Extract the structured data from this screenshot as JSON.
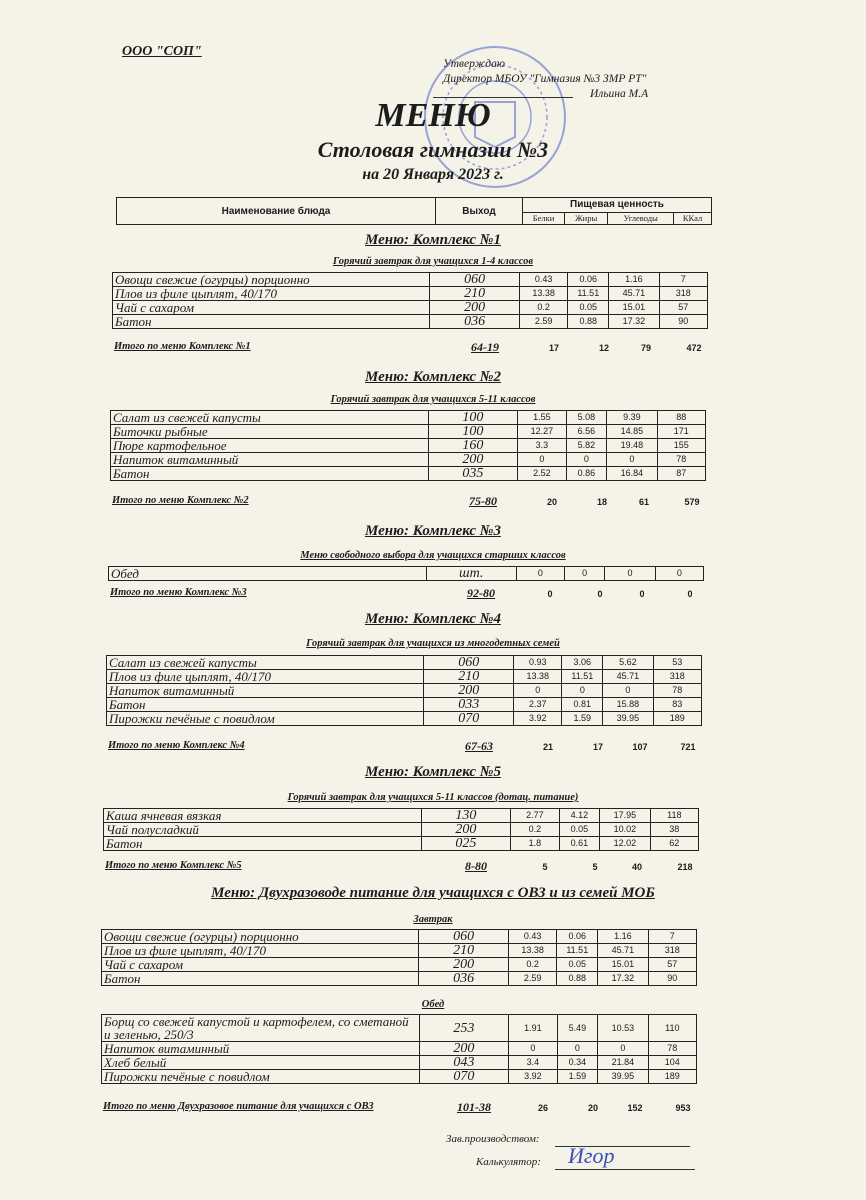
{
  "org": "ООО \"СОП\"",
  "approval": {
    "line1": "Утверждаю",
    "line2": "Директор МБОУ \"Гимназия №3 ЗМР РТ\"",
    "name": "Ильина М.А"
  },
  "title": "МЕНЮ",
  "subtitle": "Столовая гимназии №3",
  "date": "на 20 Января 2023 г.",
  "header": {
    "dish": "Наименование блюда",
    "output": "Выход",
    "nutrition": "Пищевая ценность",
    "protein": "Белки",
    "fat": "Жиры",
    "carbs": "Углеводы",
    "kcal": "ККал"
  },
  "sections": [
    {
      "title": "Меню: Комплекс №1",
      "groups": [
        {
          "subtitle": "Горячий завтрак для учащихся 1-4 классов",
          "rows": [
            [
              "Овощи свежие (огурцы) порционно",
              "060",
              "0.43",
              "0.06",
              "1.16",
              "7"
            ],
            [
              "Плов из филе цыплят, 40/170",
              "210",
              "13.38",
              "11.51",
              "45.71",
              "318"
            ],
            [
              "Чай с сахаром",
              "200",
              "0.2",
              "0.05",
              "15.01",
              "57"
            ],
            [
              "Батон",
              "036",
              "2.59",
              "0.88",
              "17.32",
              "90"
            ]
          ]
        }
      ],
      "total": [
        "Итого по меню Комплекс №1",
        "64-19",
        "17",
        "12",
        "79",
        "472"
      ]
    },
    {
      "title": "Меню: Комплекс №2",
      "groups": [
        {
          "subtitle": "Горячий завтрак для учащихся 5-11 классов",
          "rows": [
            [
              "Салат из свежей капусты",
              "100",
              "1.55",
              "5.08",
              "9.39",
              "88"
            ],
            [
              "Биточки рыбные",
              "100",
              "12.27",
              "6.56",
              "14.85",
              "171"
            ],
            [
              "Пюре картофельное",
              "160",
              "3.3",
              "5.82",
              "19.48",
              "155"
            ],
            [
              "Напиток витаминный",
              "200",
              "0",
              "0",
              "0",
              "78"
            ],
            [
              "Батон",
              "035",
              "2.52",
              "0.86",
              "16.84",
              "87"
            ]
          ]
        }
      ],
      "total": [
        "Итого по меню Комплекс №2",
        "75-80",
        "20",
        "18",
        "61",
        "579"
      ]
    },
    {
      "title": "Меню: Комплекс №3",
      "groups": [
        {
          "subtitle": "Меню свободного выбора для учащихся старших классов",
          "rows": [
            [
              "Обед",
              "шт.",
              "0",
              "0",
              "0",
              "0"
            ]
          ]
        }
      ],
      "total": [
        "Итого по меню Комплекс №3",
        "92-80",
        "0",
        "0",
        "0",
        "0"
      ]
    },
    {
      "title": "Меню: Комплекс №4",
      "groups": [
        {
          "subtitle": "Горячий завтрак для учащихся из многодетных семей",
          "rows": [
            [
              "Салат из свежей капусты",
              "060",
              "0.93",
              "3.06",
              "5.62",
              "53"
            ],
            [
              "Плов из филе цыплят, 40/170",
              "210",
              "13.38",
              "11.51",
              "45.71",
              "318"
            ],
            [
              "Напиток витаминный",
              "200",
              "0",
              "0",
              "0",
              "78"
            ],
            [
              "Батон",
              "033",
              "2.37",
              "0.81",
              "15.88",
              "83"
            ],
            [
              "Пирожки печёные с повидлом",
              "070",
              "3.92",
              "1.59",
              "39.95",
              "189"
            ]
          ]
        }
      ],
      "total": [
        "Итого по меню Комплекс №4",
        "67-63",
        "21",
        "17",
        "107",
        "721"
      ]
    },
    {
      "title": "Меню: Комплекс №5",
      "groups": [
        {
          "subtitle": "Горячий завтрак для учащихся 5-11 классов (дотац. питание)",
          "rows": [
            [
              "Каша ячневая вязкая",
              "130",
              "2.77",
              "4.12",
              "17.95",
              "118"
            ],
            [
              "Чай полусладкий",
              "200",
              "0.2",
              "0.05",
              "10.02",
              "38"
            ],
            [
              "Батон",
              "025",
              "1.8",
              "0.61",
              "12.02",
              "62"
            ]
          ]
        }
      ],
      "total": [
        "Итого по меню Комплекс №5",
        "8-80",
        "5",
        "5",
        "40",
        "218"
      ]
    },
    {
      "title": "Меню: Двухразоводе питание для учащихся с ОВЗ и из семей МОБ",
      "groups": [
        {
          "subtitle": "Завтрак",
          "rows": [
            [
              "Овощи свежие (огурцы) порционно",
              "060",
              "0.43",
              "0.06",
              "1.16",
              "7"
            ],
            [
              "Плов из филе цыплят, 40/170",
              "210",
              "13.38",
              "11.51",
              "45.71",
              "318"
            ],
            [
              "Чай с сахаром",
              "200",
              "0.2",
              "0.05",
              "15.01",
              "57"
            ],
            [
              "Батон",
              "036",
              "2.59",
              "0.88",
              "17.32",
              "90"
            ]
          ]
        },
        {
          "subtitle": "Обед",
          "rows": [
            [
              "Борщ со свежей капустой и картофелем, со сметаной и зеленью, 250/3",
              "253",
              "1.91",
              "5.49",
              "10.53",
              "110"
            ],
            [
              "Напиток витаминный",
              "200",
              "0",
              "0",
              "0",
              "78"
            ],
            [
              "Хлеб белый",
              "043",
              "3.4",
              "0.34",
              "21.84",
              "104"
            ],
            [
              "Пирожки печёные с повидлом",
              "070",
              "3.92",
              "1.59",
              "39.95",
              "189"
            ]
          ]
        }
      ],
      "total": [
        "Итого по меню Двухразовое питание для учащихся с ОВЗ",
        "101-38",
        "26",
        "20",
        "152",
        "953"
      ]
    }
  ],
  "signatures": {
    "production_head": "Зав.производством:",
    "calculator": "Калькулятор:",
    "calculator_signature": "Игор"
  },
  "stamp_color": "#4a63c9"
}
